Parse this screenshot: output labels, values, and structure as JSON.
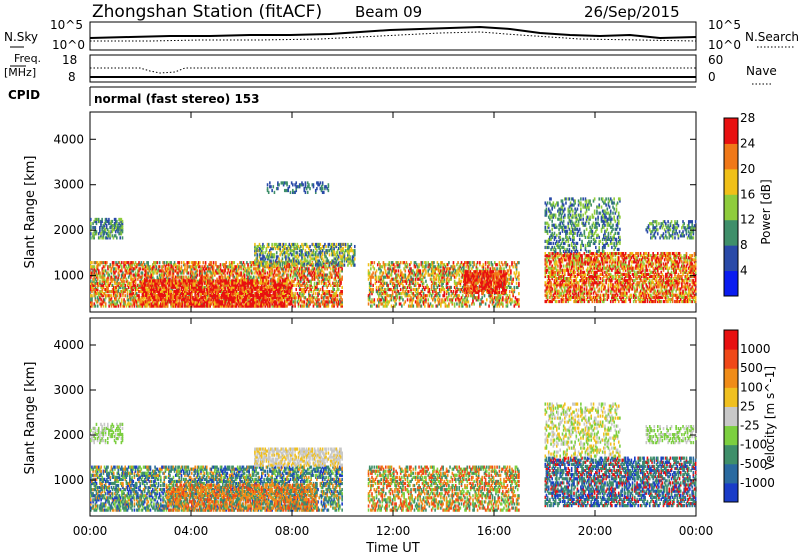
{
  "header": {
    "station": "Zhongshan Station (fitACF)",
    "beam": "Beam 09",
    "date": "26/Sep/2015"
  },
  "noise_panel": {
    "left_label": "N.Sky",
    "right_label": "N.Search",
    "left_ticks": [
      "10^5",
      "10^0"
    ],
    "right_ticks": [
      "10^5",
      "10^0"
    ]
  },
  "freq_panel": {
    "left_label_1": "Freq.",
    "left_label_2": "[MHz]",
    "right_label": "Nave",
    "left_ticks": [
      "18",
      "8"
    ],
    "right_ticks": [
      "60",
      "0"
    ]
  },
  "cpid": {
    "label": "CPID",
    "text": "normal (fast stereo) 153"
  },
  "chart_data": [
    {
      "type": "heatmap",
      "name": "power",
      "ylabel": "Slant Range [km]",
      "yticks": [
        1000,
        2000,
        3000,
        4000
      ],
      "ylim": [
        200,
        4600
      ],
      "colorbar_label": "Power [dB]",
      "colorbar_ticks": [
        "4",
        "8",
        "12",
        "16",
        "20",
        "24",
        "28"
      ],
      "colors": [
        "#0a1cf0",
        "#2a4aa8",
        "#3f8f6a",
        "#8fcc3c",
        "#f0c018",
        "#f07818",
        "#e81010"
      ]
    },
    {
      "type": "heatmap",
      "name": "velocity",
      "ylabel": "Slant Range [km]",
      "yticks": [
        1000,
        2000,
        3000,
        4000
      ],
      "ylim": [
        200,
        4600
      ],
      "colorbar_label": "Velocity [m s^-1]",
      "colorbar_ticks": [
        "1000",
        "500",
        "100",
        "25",
        "-25",
        "-100",
        "-500",
        "-1000"
      ],
      "colors": [
        "#1a3cc8",
        "#2a6aa0",
        "#3f8f6a",
        "#7ccf40",
        "#c8c8c8",
        "#f0c020",
        "#f08c18",
        "#f04818",
        "#e81010"
      ]
    }
  ],
  "time_axis": {
    "ticks": [
      "00:00",
      "04:00",
      "08:00",
      "12:00",
      "16:00",
      "20:00",
      "00:00"
    ],
    "label": "Time UT"
  }
}
